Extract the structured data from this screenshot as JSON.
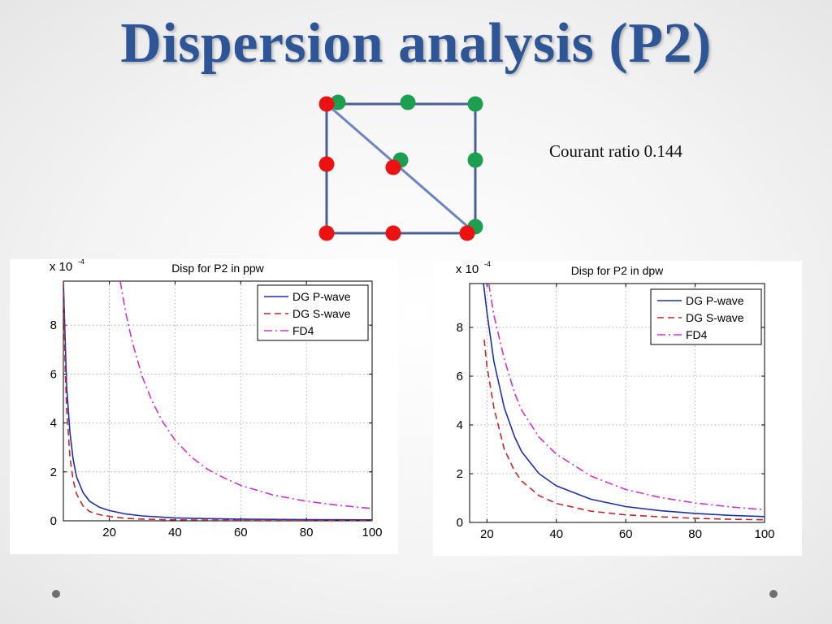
{
  "slide": {
    "title": "Dispersion analysis (P2)",
    "courant_text": "Courant ratio 0.144"
  },
  "diagram": {
    "outline_color": "#4A5E99",
    "red_dot_color": "#EE1111",
    "green_dot_color": "#1CA050"
  },
  "chart_data": [
    {
      "type": "line",
      "title": "Disp for P2 in ppw",
      "multiplier_label": "x 10",
      "multiplier_exp": "-4",
      "xlim": [
        6,
        100
      ],
      "ylim": [
        0,
        9.8
      ],
      "x_ticks": [
        20,
        40,
        60,
        80,
        100
      ],
      "y_ticks": [
        0,
        2,
        4,
        6,
        8
      ],
      "grid": true,
      "legend_position": "top-right",
      "series": [
        {
          "name": "DG P-wave",
          "color": "#1F2FA8",
          "dash": "solid",
          "x": [
            6,
            7,
            8,
            9,
            10,
            12,
            14,
            17,
            20,
            25,
            30,
            40,
            50,
            60,
            80,
            100
          ],
          "y": [
            9.8,
            5.5,
            3.6,
            2.5,
            1.8,
            1.15,
            0.8,
            0.55,
            0.42,
            0.28,
            0.2,
            0.12,
            0.09,
            0.07,
            0.05,
            0.04
          ]
        },
        {
          "name": "DG S-wave",
          "color": "#C0282B",
          "dash": "dashed",
          "x": [
            6,
            6.6,
            7,
            8,
            9,
            10,
            12,
            14,
            17,
            20,
            25,
            30,
            40,
            60,
            80,
            100
          ],
          "y": [
            9.8,
            6.0,
            4.6,
            2.6,
            1.65,
            1.1,
            0.6,
            0.38,
            0.25,
            0.18,
            0.1,
            0.07,
            0.04,
            0.02,
            0.015,
            0.01
          ]
        },
        {
          "name": "FD4",
          "color": "#CC33CC",
          "dash": "dashdot",
          "x": [
            23.3,
            25,
            27,
            30,
            33,
            36,
            40,
            45,
            50,
            55,
            60,
            70,
            80,
            90,
            100
          ],
          "y": [
            9.8,
            8.5,
            7.3,
            5.9,
            4.9,
            4.1,
            3.3,
            2.6,
            2.1,
            1.75,
            1.45,
            1.05,
            0.8,
            0.63,
            0.5
          ]
        }
      ]
    },
    {
      "type": "line",
      "title": "Disp for P2 in dpw",
      "multiplier_label": "x 10",
      "multiplier_exp": "-4",
      "xlim": [
        15,
        100
      ],
      "ylim": [
        0,
        9.8
      ],
      "x_ticks": [
        20,
        40,
        60,
        80,
        100
      ],
      "y_ticks": [
        0,
        2,
        4,
        6,
        8
      ],
      "grid": true,
      "legend_position": "top-right",
      "series": [
        {
          "name": "DG P-wave",
          "color": "#1F2FA8",
          "dash": "solid",
          "x": [
            19,
            20,
            22,
            25,
            28,
            30,
            35,
            40,
            50,
            60,
            70,
            80,
            90,
            100
          ],
          "y": [
            9.8,
            8.6,
            6.6,
            4.7,
            3.5,
            2.9,
            2.0,
            1.5,
            0.95,
            0.65,
            0.48,
            0.37,
            0.29,
            0.24
          ]
        },
        {
          "name": "DG S-wave",
          "color": "#C0282B",
          "dash": "dashed",
          "x": [
            19.2,
            20,
            22,
            25,
            28,
            30,
            35,
            40,
            50,
            60,
            70,
            80,
            90,
            100
          ],
          "y": [
            7.5,
            6.4,
            4.7,
            3.0,
            2.1,
            1.7,
            1.1,
            0.78,
            0.46,
            0.31,
            0.23,
            0.17,
            0.13,
            0.11
          ]
        },
        {
          "name": "FD4",
          "color": "#CC33CC",
          "dash": "dashdot",
          "x": [
            20.5,
            22,
            25,
            28,
            30,
            35,
            40,
            50,
            60,
            70,
            80,
            90,
            100
          ],
          "y": [
            9.8,
            8.5,
            6.7,
            5.3,
            4.6,
            3.5,
            2.8,
            1.9,
            1.35,
            1.02,
            0.8,
            0.64,
            0.52
          ]
        }
      ]
    }
  ]
}
